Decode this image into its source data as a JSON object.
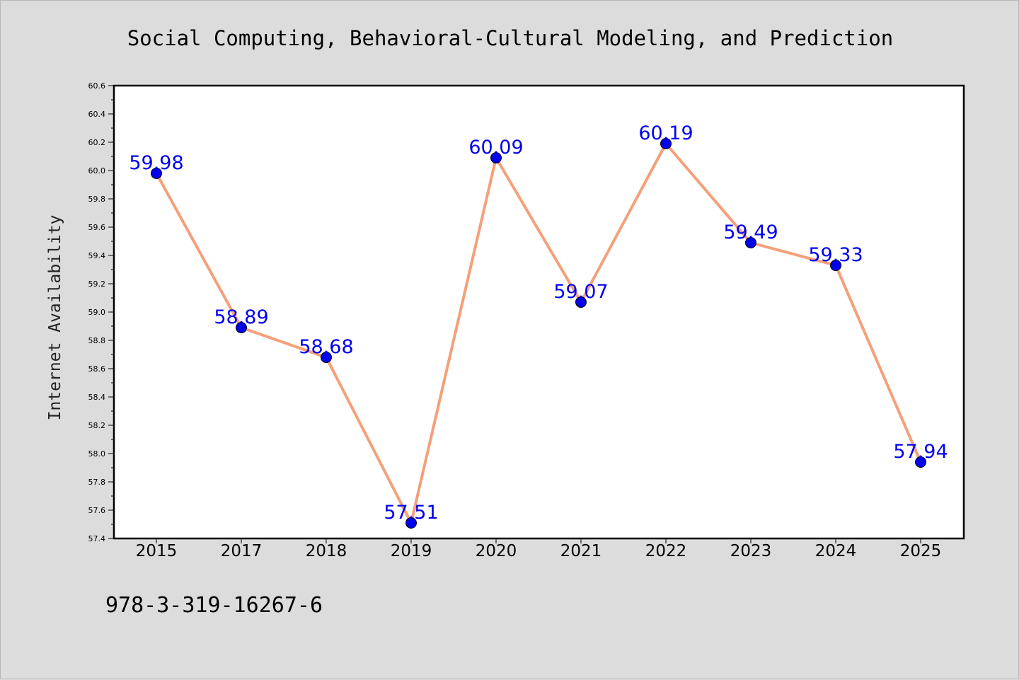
{
  "chart_data": {
    "type": "line",
    "title": "Social Computing, Behavioral-Cultural Modeling, and Prediction",
    "ylabel": "Internet Availability",
    "xlabel": "",
    "categories": [
      "2015",
      "2017",
      "2018",
      "2019",
      "2020",
      "2021",
      "2022",
      "2023",
      "2024",
      "2025"
    ],
    "series": [
      {
        "values": [
          59.98,
          58.89,
          58.68,
          57.51,
          60.09,
          59.07,
          60.19,
          59.49,
          59.33,
          57.94
        ],
        "data_labels": [
          "59.98",
          "58.89",
          "58.68",
          "57.51",
          "60.09",
          "59.07",
          "60.19",
          "59.49",
          "59.33",
          "57.94"
        ],
        "line_color": "#f5a07a",
        "marker_color": "#0000ee"
      }
    ],
    "ylim": [
      57.4,
      60.6
    ],
    "yticks": [
      "57.4",
      "57.6",
      "57.8",
      "58.0",
      "58.2",
      "58.4",
      "58.6",
      "58.8",
      "59.0",
      "59.2",
      "59.4",
      "59.6",
      "59.8",
      "60.0",
      "60.2",
      "60.4",
      "60.6"
    ],
    "grid": false,
    "legend": "none"
  },
  "footnote": "978-3-319-16267-6",
  "colors": {
    "background": "#dcdcdc",
    "plot_background": "#ffffff",
    "label_color": "#0000ee"
  }
}
